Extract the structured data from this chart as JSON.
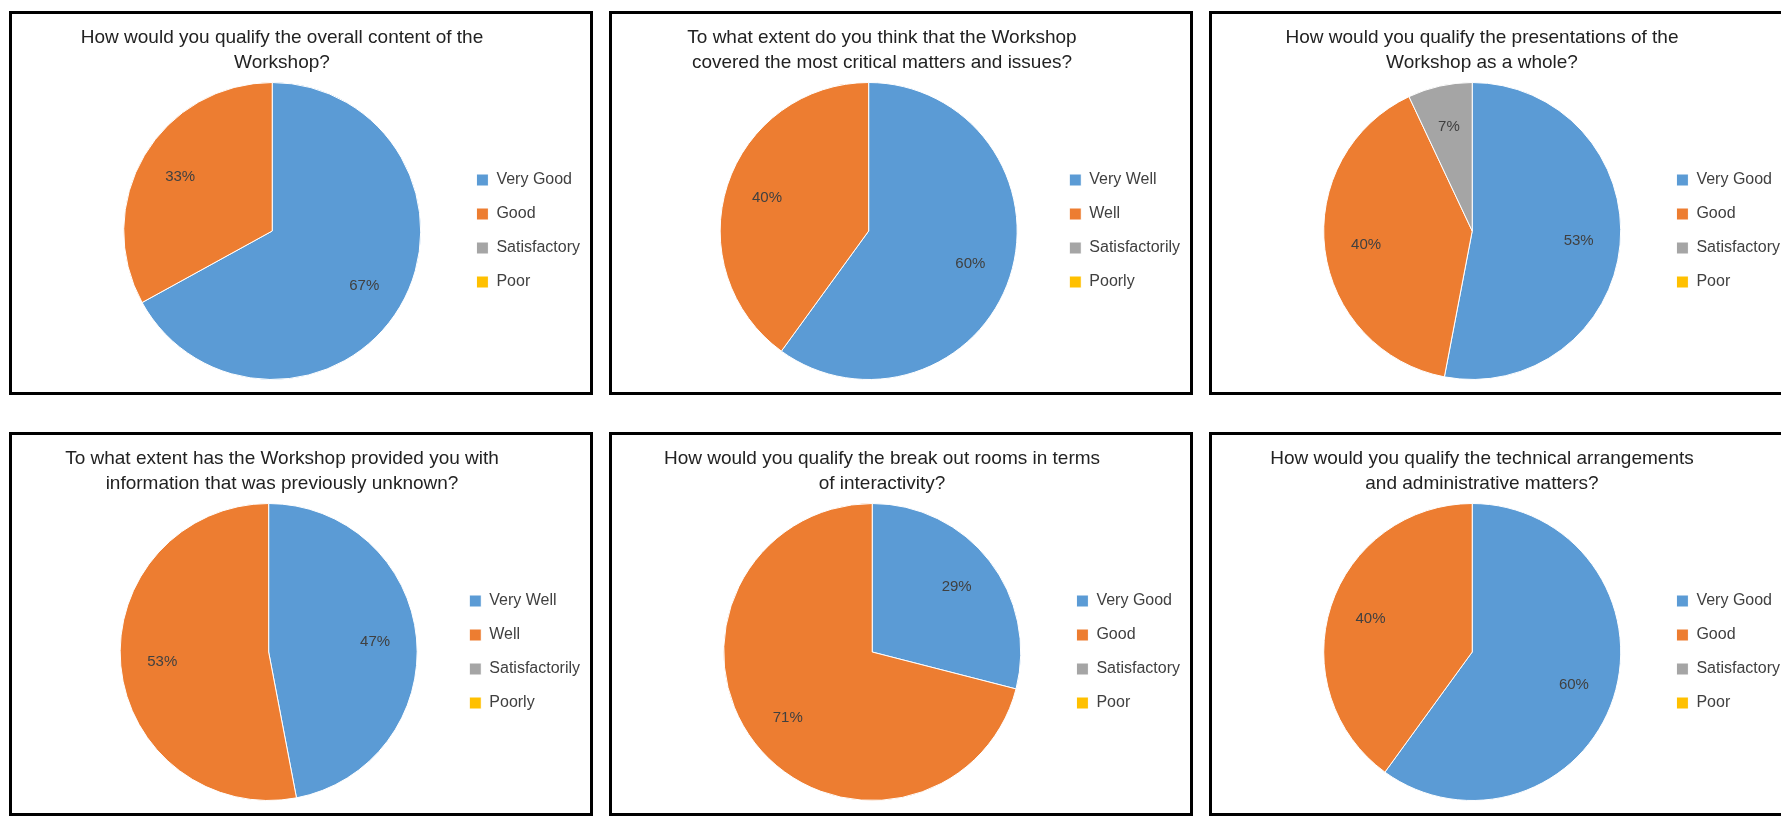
{
  "chart_data": [
    {
      "type": "pie",
      "title": "How would you qualify the overall content of the Workshop?",
      "categories": [
        "Very Good",
        "Good",
        "Satisfactory",
        "Poor"
      ],
      "values": [
        67,
        33,
        0,
        0
      ],
      "colors": [
        "#5b9bd5",
        "#ed7d31",
        "#a5a5a5",
        "#ffc000"
      ],
      "value_labels": [
        "67%",
        "33%",
        null,
        null
      ],
      "legend": "right"
    },
    {
      "type": "pie",
      "title": "To what extent do you think that the Workshop covered the most critical matters and issues?",
      "categories": [
        "Very Well",
        "Well",
        "Satisfactorily",
        "Poorly"
      ],
      "values": [
        60,
        40,
        0,
        0
      ],
      "colors": [
        "#5b9bd5",
        "#ed7d31",
        "#a5a5a5",
        "#ffc000"
      ],
      "value_labels": [
        "60%",
        "40%",
        null,
        null
      ],
      "legend": "right"
    },
    {
      "type": "pie",
      "title": "How would you qualify the presentations of the Workshop as a whole?",
      "categories": [
        "Very Good",
        "Good",
        "Satisfactory",
        "Poor"
      ],
      "values": [
        53,
        40,
        7,
        0
      ],
      "colors": [
        "#5b9bd5",
        "#ed7d31",
        "#a5a5a5",
        "#ffc000"
      ],
      "value_labels": [
        "53%",
        "40%",
        "7%",
        null
      ],
      "legend": "right"
    },
    {
      "type": "pie",
      "title": "To what extent has the Workshop provided you with information that was previously unknown?",
      "categories": [
        "Very Well",
        "Well",
        "Satisfactorily",
        "Poorly"
      ],
      "values": [
        47,
        53,
        0,
        0
      ],
      "colors": [
        "#5b9bd5",
        "#ed7d31",
        "#a5a5a5",
        "#ffc000"
      ],
      "value_labels": [
        "47%",
        "53%",
        null,
        null
      ],
      "legend": "right"
    },
    {
      "type": "pie",
      "title": "How would you qualify the break out rooms in terms of interactivity?",
      "categories": [
        "Very Good",
        "Good",
        "Satisfactory",
        "Poor"
      ],
      "values": [
        29,
        71,
        0,
        0
      ],
      "colors": [
        "#5b9bd5",
        "#ed7d31",
        "#a5a5a5",
        "#ffc000"
      ],
      "value_labels": [
        "29%",
        "71%",
        null,
        null
      ],
      "legend": "right"
    },
    {
      "type": "pie",
      "title": "How would you qualify the technical arrangements and administrative matters?",
      "categories": [
        "Very Good",
        "Good",
        "Satisfactory",
        "Poor"
      ],
      "values": [
        60,
        40,
        0,
        0
      ],
      "colors": [
        "#5b9bd5",
        "#ed7d31",
        "#a5a5a5",
        "#ffc000"
      ],
      "value_labels": [
        "60%",
        "40%",
        null,
        null
      ],
      "legend": "right"
    }
  ]
}
